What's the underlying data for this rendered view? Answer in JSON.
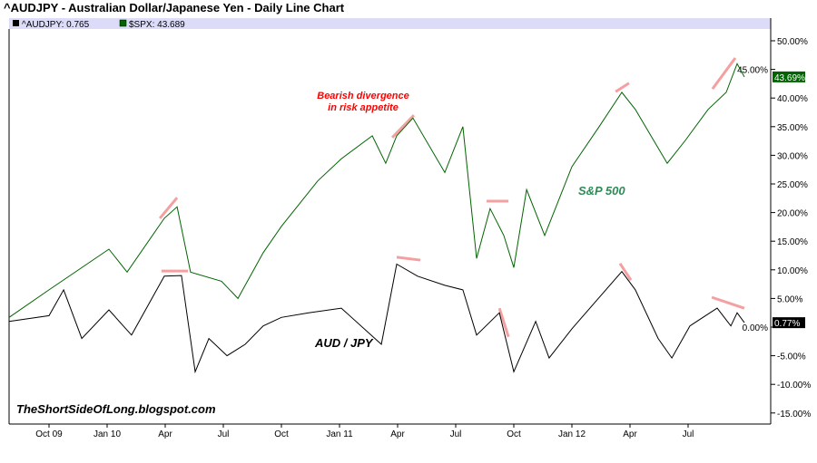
{
  "chart_data": {
    "type": "line",
    "title": "^AUDJPY - Australian Dollar/Japanese Yen - Daily Line Chart",
    "xlabel": "",
    "ylabel": "",
    "x_units": "decimal year",
    "xlim": [
      2009.578,
      2012.86
    ],
    "ylim": [
      -17.5,
      52.5
    ],
    "grid": false,
    "legend_placement": "top-left",
    "legend": [
      {
        "label": "^AUDJPY: 0.765",
        "color": "#000000"
      },
      {
        "label": "$SPX: 43.689",
        "color": "#006400"
      }
    ],
    "x_ticks": [
      {
        "label": "Oct 09",
        "x": 2009.75
      },
      {
        "label": "Jan 10",
        "x": 2010.0
      },
      {
        "label": "Apr",
        "x": 2010.25
      },
      {
        "label": "Jul",
        "x": 2010.5
      },
      {
        "label": "Oct",
        "x": 2010.75
      },
      {
        "label": "Jan 11",
        "x": 2011.0
      },
      {
        "label": "Apr",
        "x": 2011.25
      },
      {
        "label": "Jul",
        "x": 2011.5
      },
      {
        "label": "Oct",
        "x": 2011.75
      },
      {
        "label": "Jan 12",
        "x": 2012.0
      },
      {
        "label": "Apr",
        "x": 2012.25
      },
      {
        "label": "Jul",
        "x": 2012.5
      }
    ],
    "y_ticks": [
      {
        "label": "50.00%",
        "y": 50
      },
      {
        "label": "45.00%",
        "y": 45
      },
      {
        "label": "40.00%",
        "y": 40
      },
      {
        "label": "35.00%",
        "y": 35
      },
      {
        "label": "30.00%",
        "y": 30
      },
      {
        "label": "25.00%",
        "y": 25
      },
      {
        "label": "20.00%",
        "y": 20
      },
      {
        "label": "15.00%",
        "y": 15
      },
      {
        "label": "10.00%",
        "y": 10
      },
      {
        "label": "5.00%",
        "y": 5
      },
      {
        "label": "0.00%",
        "y": 0
      },
      {
        "label": "-5.00%",
        "y": -5
      },
      {
        "label": "-10.00%",
        "y": -10
      },
      {
        "label": "-15.00%",
        "y": -15
      }
    ],
    "series": [
      {
        "name": "$SPX",
        "color": "#006400",
        "last_label": "43.69%",
        "last_value": 43.69,
        "x": [
          2009.578,
          2009.75,
          2010.008,
          2010.086,
          2010.246,
          2010.301,
          2010.359,
          2010.492,
          2010.563,
          2010.672,
          2010.75,
          2010.906,
          2011.008,
          2011.141,
          2011.199,
          2011.246,
          2011.316,
          2011.453,
          2011.531,
          2011.59,
          2011.648,
          2011.707,
          2011.75,
          2011.805,
          2011.883,
          2012.0,
          2012.117,
          2012.215,
          2012.273,
          2012.41,
          2012.488,
          2012.586,
          2012.664,
          2012.711,
          2012.742
        ],
        "y": [
          1.7,
          6.5,
          13.6,
          9.6,
          19.0,
          21.0,
          9.6,
          8.0,
          5.0,
          13.0,
          17.6,
          25.5,
          29.4,
          33.4,
          28.6,
          33.4,
          36.5,
          27.0,
          35.0,
          12.0,
          20.7,
          16.0,
          10.4,
          24.0,
          16.0,
          28.0,
          35.0,
          41.0,
          38.0,
          28.6,
          32.6,
          38.0,
          41.0,
          46.0,
          43.69
        ]
      },
      {
        "name": "^AUDJPY",
        "color": "#000000",
        "last_label": "0.77%",
        "last_value": 0.77,
        "x": [
          2009.578,
          2009.75,
          2009.813,
          2009.891,
          2010.008,
          2010.105,
          2010.246,
          2010.32,
          2010.379,
          2010.438,
          2010.516,
          2010.594,
          2010.672,
          2010.75,
          2010.867,
          2011.008,
          2011.18,
          2011.246,
          2011.336,
          2011.453,
          2011.531,
          2011.59,
          2011.688,
          2011.75,
          2011.844,
          2011.902,
          2012.0,
          2012.215,
          2012.273,
          2012.371,
          2012.43,
          2012.508,
          2012.625,
          2012.684,
          2012.711,
          2012.742
        ],
        "y": [
          1.0,
          2.0,
          6.5,
          -2.0,
          3.0,
          -1.4,
          8.9,
          9.0,
          -7.8,
          -2.0,
          -5.0,
          -3.0,
          0.2,
          1.7,
          2.5,
          3.3,
          -3.0,
          11.0,
          8.9,
          7.3,
          6.5,
          -1.4,
          2.5,
          -7.8,
          1.0,
          -5.4,
          -0.3,
          9.7,
          6.5,
          -2.0,
          -5.4,
          0.2,
          3.3,
          0.2,
          2.5,
          0.77
        ]
      }
    ],
    "divergence_lines": [
      {
        "x1": 2010.227,
        "y1": 19.0,
        "x2": 2010.301,
        "y2": 22.6
      },
      {
        "x1": 2010.234,
        "y1": 9.8,
        "x2": 2010.348,
        "y2": 9.8
      },
      {
        "x1": 2011.227,
        "y1": 33.1,
        "x2": 2011.32,
        "y2": 37.0
      },
      {
        "x1": 2011.246,
        "y1": 12.2,
        "x2": 2011.348,
        "y2": 11.7
      },
      {
        "x1": 2011.633,
        "y1": 22.0,
        "x2": 2011.727,
        "y2": 22.0
      },
      {
        "x1": 2011.688,
        "y1": 3.3,
        "x2": 2011.727,
        "y2": -1.7
      },
      {
        "x1": 2012.188,
        "y1": 41.1,
        "x2": 2012.246,
        "y2": 42.6
      },
      {
        "x1": 2012.207,
        "y1": 11.1,
        "x2": 2012.254,
        "y2": 8.2
      },
      {
        "x1": 2012.605,
        "y1": 41.6,
        "x2": 2012.703,
        "y2": 47.0
      },
      {
        "x1": 2012.602,
        "y1": 5.2,
        "x2": 2012.742,
        "y2": 3.3
      }
    ],
    "annotations": {
      "divergence_line1": "Bearish divergence",
      "divergence_line2": "in risk appetite",
      "spx_label": "S&P 500",
      "audjpy_label": "AUD / JPY",
      "watermark": "TheShortSideOfLong.blogspot.com"
    },
    "colors": {
      "annotation_red": "#ff0000",
      "divergence_line": "#f4a0a0",
      "legend_bg": "#dcdcf8",
      "spx": "#006400"
    }
  }
}
